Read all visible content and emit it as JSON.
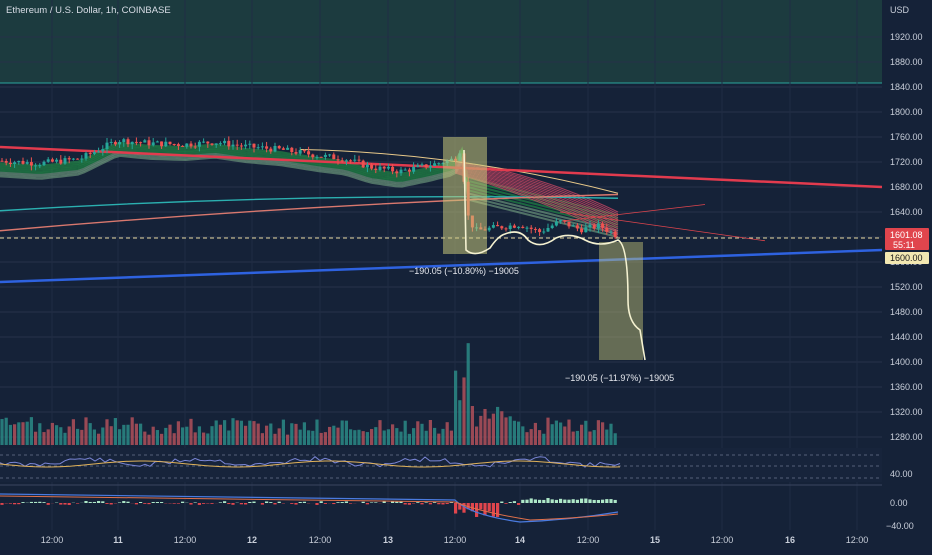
{
  "header": {
    "title": "Ethereum / U.S. Dollar, 1h, COINBASE",
    "currency": "USD"
  },
  "chart_data": {
    "type": "candlestick",
    "title": "Ethereum / U.S. Dollar, 1h, COINBASE",
    "currency_label": "USD",
    "price_ticks": [
      1920,
      1880,
      1840,
      1800,
      1760,
      1720,
      1680,
      1640,
      1600,
      1560,
      1520,
      1480,
      1440,
      1400,
      1360,
      1320,
      1280
    ],
    "price_tick_labels": [
      "1920.00",
      "1880.00",
      "1840.00",
      "1800.00",
      "1760.00",
      "1720.00",
      "1680.00",
      "1640.00",
      "1600.00",
      "1560.00",
      "1520.00",
      "1480.00",
      "1440.00",
      "1400.00",
      "1360.00",
      "1320.00",
      "1280.00"
    ],
    "ylim": [
      1262,
      1955
    ],
    "time_labels": [
      "12:00",
      "11",
      "12:00",
      "12",
      "12:00",
      "13",
      "12:00",
      "14",
      "12:00",
      "15",
      "12:00",
      "16",
      "12:00"
    ],
    "oscillator_ticks": [
      "40.00"
    ],
    "macd_ticks": [
      "0.00",
      "−40.00"
    ],
    "current_price_label": "1601.08",
    "countdown_label": "55:11",
    "level_label": "1600.00",
    "level_price": 1600,
    "colors": {
      "background": "#152238",
      "bull": "#26a69a",
      "bear": "#ef5350",
      "ribbon_green": "#1e8a3a",
      "red_trendline": "#e23b4e",
      "blue_trendline": "#2e62e0",
      "box": "#c7c77a",
      "path": "#f4f1d0",
      "level_fill": "#f2e8b2",
      "price_tag": "#e0454d"
    },
    "annotations": [
      {
        "text": "−190.05 (−10.80%) −19005"
      },
      {
        "text": "−190.05 (−11.97%) −19005"
      }
    ]
  }
}
